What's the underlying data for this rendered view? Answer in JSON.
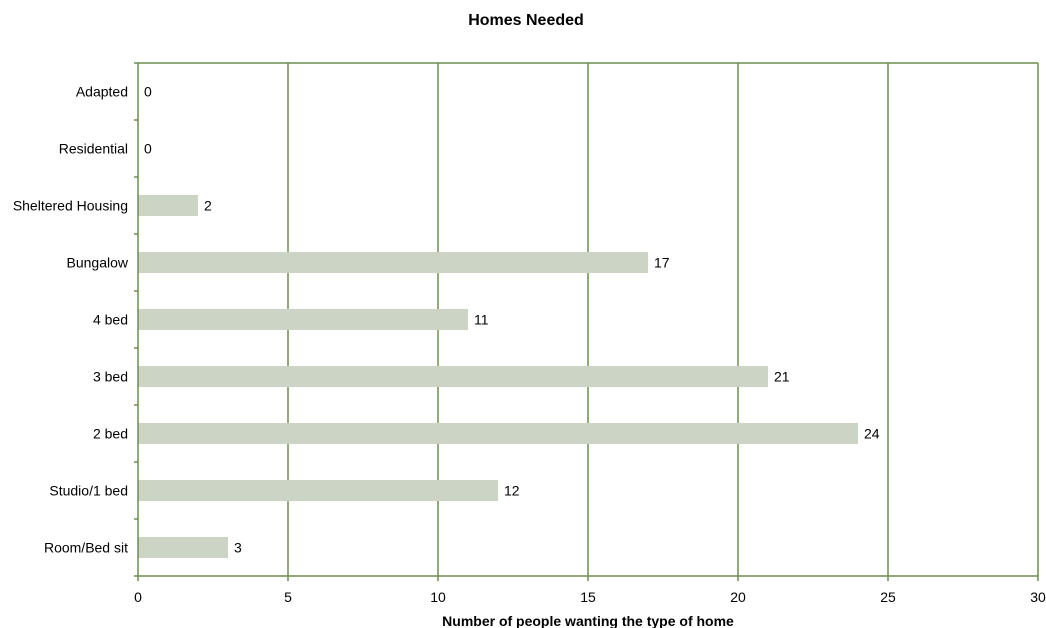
{
  "chart_data": {
    "type": "bar",
    "orientation": "horizontal",
    "title": "Homes Needed",
    "xlabel": "Number of people wanting the type of home",
    "ylabel": "",
    "categories": [
      "Adapted",
      "Residential",
      "Sheltered Housing",
      "Bungalow",
      "4 bed",
      "3 bed",
      "2 bed",
      "Studio/1 bed",
      "Room/Bed sit"
    ],
    "values": [
      0,
      0,
      2,
      17,
      11,
      21,
      24,
      12,
      3
    ],
    "xlim": [
      0,
      30
    ],
    "xticks": [
      0,
      5,
      10,
      15,
      20,
      25,
      30
    ],
    "grid": "vertical",
    "legend": "none",
    "data_labels": true,
    "colors": {
      "bar": "#ccd5c5",
      "axis": "#6b8e4e",
      "grid": "#6b8e4e"
    }
  }
}
